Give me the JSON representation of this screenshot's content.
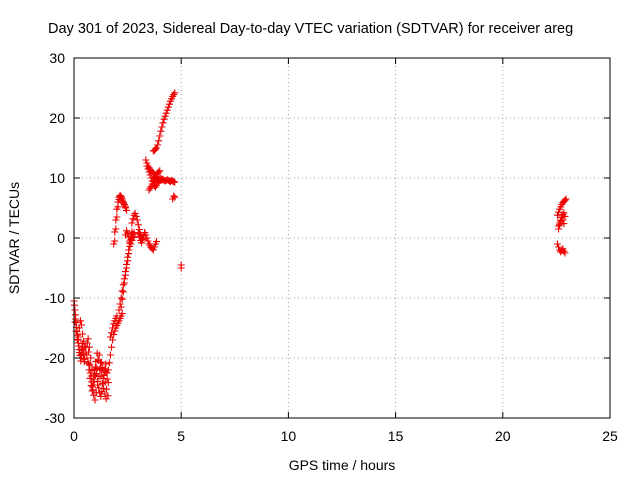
{
  "chart_data": {
    "type": "scatter",
    "title": "Day 301 of 2023, Sidereal Day-to-day VTEC variation (SDTVAR) for receiver areg",
    "xlabel": "GPS time / hours",
    "ylabel": "SDTVAR / TECUs",
    "xlim": [
      0,
      25
    ],
    "ylim": [
      -30,
      30
    ],
    "xticks": [
      0,
      5,
      10,
      15,
      20,
      25
    ],
    "yticks": [
      -30,
      -20,
      -10,
      0,
      10,
      20,
      30
    ],
    "xtick_labels": [
      "0",
      "5",
      "10",
      "15",
      "20",
      "25"
    ],
    "ytick_labels": [
      "-30",
      "-20",
      "-10",
      "0",
      "10",
      "20",
      "30"
    ],
    "grid": true,
    "marker": "plus",
    "color": "#ee0000",
    "series": [
      {
        "x": [
          0.0,
          0.02,
          0.04,
          0.06,
          0.08,
          0.1,
          0.12,
          0.14,
          0.16,
          0.18,
          0.2,
          0.22,
          0.24,
          0.26,
          0.28,
          0.3,
          0.32,
          0.34,
          0.36,
          0.38,
          0.4,
          0.42,
          0.44,
          0.46,
          0.48,
          0.5,
          0.05,
          0.1,
          0.15,
          0.2,
          0.25,
          0.3,
          0.35,
          0.4,
          0.45,
          0.5,
          0.55,
          0.55,
          0.6,
          0.65,
          0.7,
          0.75,
          0.8,
          0.85,
          0.9,
          0.95,
          1.0,
          1.05,
          1.1,
          1.15,
          1.2,
          1.25,
          1.3,
          1.35,
          1.4,
          1.45,
          1.5,
          1.55,
          1.6,
          0.62,
          0.68,
          0.74,
          0.8,
          0.86,
          0.92,
          0.98,
          1.04,
          1.1,
          1.16,
          1.22,
          1.28,
          1.34,
          1.4,
          1.46,
          1.52,
          1.58,
          0.66,
          0.72,
          0.78,
          0.84,
          0.9,
          0.96,
          1.02,
          1.08,
          1.14,
          1.2,
          1.26,
          1.32,
          1.38,
          1.44,
          1.5,
          0.7,
          0.76,
          0.82,
          0.88,
          0.94,
          1.0,
          1.06,
          1.12,
          1.18,
          1.24,
          1.3,
          1.36,
          1.42,
          1.48,
          1.54,
          1.6,
          1.65,
          1.7,
          1.75,
          1.8,
          1.85,
          1.9,
          1.95,
          2.0,
          2.05,
          2.1,
          2.15,
          2.2,
          2.25,
          1.7,
          1.75,
          1.8,
          1.85,
          1.9,
          1.95,
          2.0,
          1.85,
          1.9,
          1.95,
          2.0,
          2.05,
          2.1,
          2.15,
          2.2,
          2.25,
          2.3,
          2.35,
          2.4,
          2.45,
          1.9,
          1.95,
          2.0,
          2.05,
          2.1,
          2.15,
          2.2,
          2.25,
          2.3,
          2.35,
          2.4,
          2.1,
          2.15,
          2.2,
          2.25,
          2.3,
          2.35,
          2.4,
          2.45,
          2.5,
          2.55,
          2.6,
          2.65,
          2.7,
          2.75,
          2.8,
          2.2,
          2.25,
          2.3,
          2.35,
          2.4,
          2.45,
          2.5,
          2.55,
          2.6,
          2.65,
          2.4,
          2.45,
          2.5,
          2.55,
          2.6,
          2.65,
          2.7,
          2.75,
          2.8,
          2.7,
          2.75,
          2.8,
          2.85,
          2.9,
          2.95,
          3.0,
          3.05,
          3.1,
          3.15,
          3.2,
          3.25,
          3.3,
          3.0,
          3.05,
          3.1,
          3.15,
          3.2,
          3.25,
          3.3,
          3.35,
          3.4,
          3.45,
          3.5,
          3.55,
          3.6,
          3.65,
          3.7,
          3.75,
          3.8,
          3.85,
          3.35,
          3.4,
          3.45,
          3.5,
          3.55,
          3.6,
          3.65,
          3.7,
          3.75,
          3.8,
          3.85,
          3.9,
          3.95,
          4.0,
          4.05,
          4.1,
          4.15,
          4.2,
          4.25,
          4.3,
          4.35,
          4.4,
          4.45,
          4.5,
          4.55,
          4.6,
          4.65,
          4.7,
          3.4,
          3.45,
          3.5,
          3.55,
          3.6,
          3.65,
          3.7,
          3.75,
          3.8,
          3.85,
          3.9,
          3.95,
          4.0,
          4.05,
          4.1,
          3.5,
          3.55,
          3.6,
          3.65,
          3.7,
          3.75,
          3.8,
          3.85,
          3.9,
          3.95,
          4.0,
          3.7,
          3.75,
          3.8,
          3.85,
          3.9,
          3.95,
          4.0,
          4.05,
          4.1,
          4.15,
          4.2,
          4.25,
          4.3,
          4.35,
          4.4,
          4.45,
          4.5,
          4.55,
          4.6,
          4.65,
          4.7,
          4.6,
          4.65,
          4.7,
          5.0,
          5.0,
          22.55,
          22.6,
          22.65,
          22.7,
          22.75,
          22.8,
          22.85,
          22.9,
          22.95,
          22.6,
          22.65,
          22.7,
          22.75,
          22.8,
          22.85,
          22.9,
          22.55,
          22.6,
          22.65,
          22.7,
          22.75,
          22.8,
          22.85,
          22.9,
          22.6,
          22.65,
          22.7,
          22.75,
          22.8,
          22.85
        ],
        "y": [
          -10.5,
          -11.2,
          -12.0,
          -12.8,
          -13.5,
          -14.1,
          -14.9,
          -15.6,
          -16.2,
          -16.9,
          -17.5,
          -18.0,
          -18.6,
          -19.1,
          -19.6,
          -20.0,
          -20.5,
          -19.4,
          -18.7,
          -18.2,
          -17.6,
          -18.5,
          -19.3,
          -20.1,
          -20.6,
          -20.2,
          -14.0,
          -15.5,
          -17.0,
          -16.5,
          -15.0,
          -13.8,
          -14.5,
          -16.0,
          -17.2,
          -18.1,
          -19.0,
          -18.2,
          -19.5,
          -20.8,
          -22.0,
          -23.4,
          -24.6,
          -25.5,
          -24.0,
          -22.8,
          -21.5,
          -22.6,
          -23.9,
          -25.0,
          -25.8,
          -26.4,
          -25.6,
          -24.2,
          -22.9,
          -21.8,
          -22.4,
          -23.5,
          -24.1,
          -17.5,
          -19.0,
          -21.2,
          -23.0,
          -24.8,
          -26.2,
          -27.0,
          -25.8,
          -24.5,
          -23.1,
          -21.9,
          -20.7,
          -21.6,
          -22.8,
          -24.0,
          -25.2,
          -26.3,
          -16.8,
          -18.2,
          -20.0,
          -21.9,
          -23.5,
          -22.1,
          -20.6,
          -19.2,
          -20.4,
          -21.8,
          -23.0,
          -24.3,
          -25.1,
          -26.0,
          -26.8,
          -21.0,
          -22.5,
          -24.0,
          -25.3,
          -24.0,
          -23.0,
          -21.7,
          -20.3,
          -19.5,
          -20.8,
          -22.0,
          -23.4,
          -22.2,
          -21.0,
          -22.5,
          -22.0,
          -20.8,
          -19.5,
          -18.2,
          -17.0,
          -16.1,
          -15.5,
          -15.0,
          -14.6,
          -14.2,
          -13.8,
          -13.4,
          -13.0,
          -12.6,
          -16.5,
          -15.8,
          -15.0,
          -14.3,
          -13.8,
          -13.4,
          -13.0,
          -1.0,
          1.0,
          3.0,
          4.8,
          6.0,
          6.8,
          7.0,
          6.7,
          6.2,
          5.8,
          5.5,
          5.0,
          4.6,
          -0.5,
          1.5,
          3.5,
          5.2,
          6.4,
          7.1,
          6.9,
          6.5,
          6.0,
          5.6,
          5.2,
          -12.0,
          -11.0,
          -10.0,
          -8.8,
          -7.8,
          -6.8,
          -5.6,
          -4.4,
          -3.2,
          -2.0,
          -0.8,
          0.2,
          1.0,
          0.6,
          0.1,
          -11.5,
          -10.2,
          -9.0,
          -7.5,
          -6.2,
          -5.0,
          -3.8,
          -2.6,
          -1.4,
          -0.2,
          0.5,
          1.2,
          0.8,
          0.2,
          -0.5,
          -1.0,
          -0.4,
          0.3,
          0.9,
          2.5,
          3.2,
          3.8,
          4.1,
          3.6,
          3.0,
          2.2,
          1.4,
          0.6,
          0.0,
          -0.3,
          0.4,
          0.9,
          0.8,
          0.2,
          -0.4,
          -0.8,
          -0.2,
          0.4,
          0.9,
          0.5,
          0.0,
          -0.5,
          -1.0,
          -1.3,
          -1.6,
          -1.8,
          -2.0,
          -1.5,
          -1.0,
          -0.6,
          13.0,
          12.5,
          12.0,
          11.7,
          11.4,
          11.2,
          11.0,
          10.8,
          10.5,
          10.2,
          10.0,
          9.8,
          9.7,
          9.6,
          9.6,
          9.7,
          9.8,
          9.6,
          9.5,
          9.6,
          9.7,
          9.6,
          9.5,
          9.4,
          9.6,
          9.5,
          9.4,
          9.3,
          12.0,
          11.5,
          11.0,
          10.5,
          10.0,
          9.5,
          9.0,
          8.7,
          8.5,
          8.8,
          9.2,
          9.5,
          9.8,
          10.0,
          9.7,
          8.0,
          8.3,
          8.6,
          9.0,
          9.4,
          9.8,
          10.2,
          10.5,
          10.8,
          11.0,
          11.2,
          14.5,
          14.6,
          14.8,
          15.0,
          15.5,
          16.2,
          17.0,
          17.8,
          18.5,
          19.2,
          19.8,
          20.3,
          20.8,
          21.3,
          21.8,
          22.3,
          22.8,
          23.2,
          23.6,
          23.9,
          24.2,
          6.5,
          7.0,
          6.8,
          -4.5,
          -5.0,
          3.8,
          4.3,
          4.8,
          5.2,
          5.6,
          5.9,
          6.1,
          6.3,
          6.5,
          2.0,
          2.5,
          3.0,
          3.5,
          3.9,
          4.2,
          3.6,
          -1.0,
          -1.5,
          -2.0,
          -2.3,
          -2.1,
          -1.8,
          -2.2,
          -2.5,
          1.5,
          2.2,
          2.8,
          3.4,
          3.0,
          2.4
        ]
      }
    ]
  }
}
